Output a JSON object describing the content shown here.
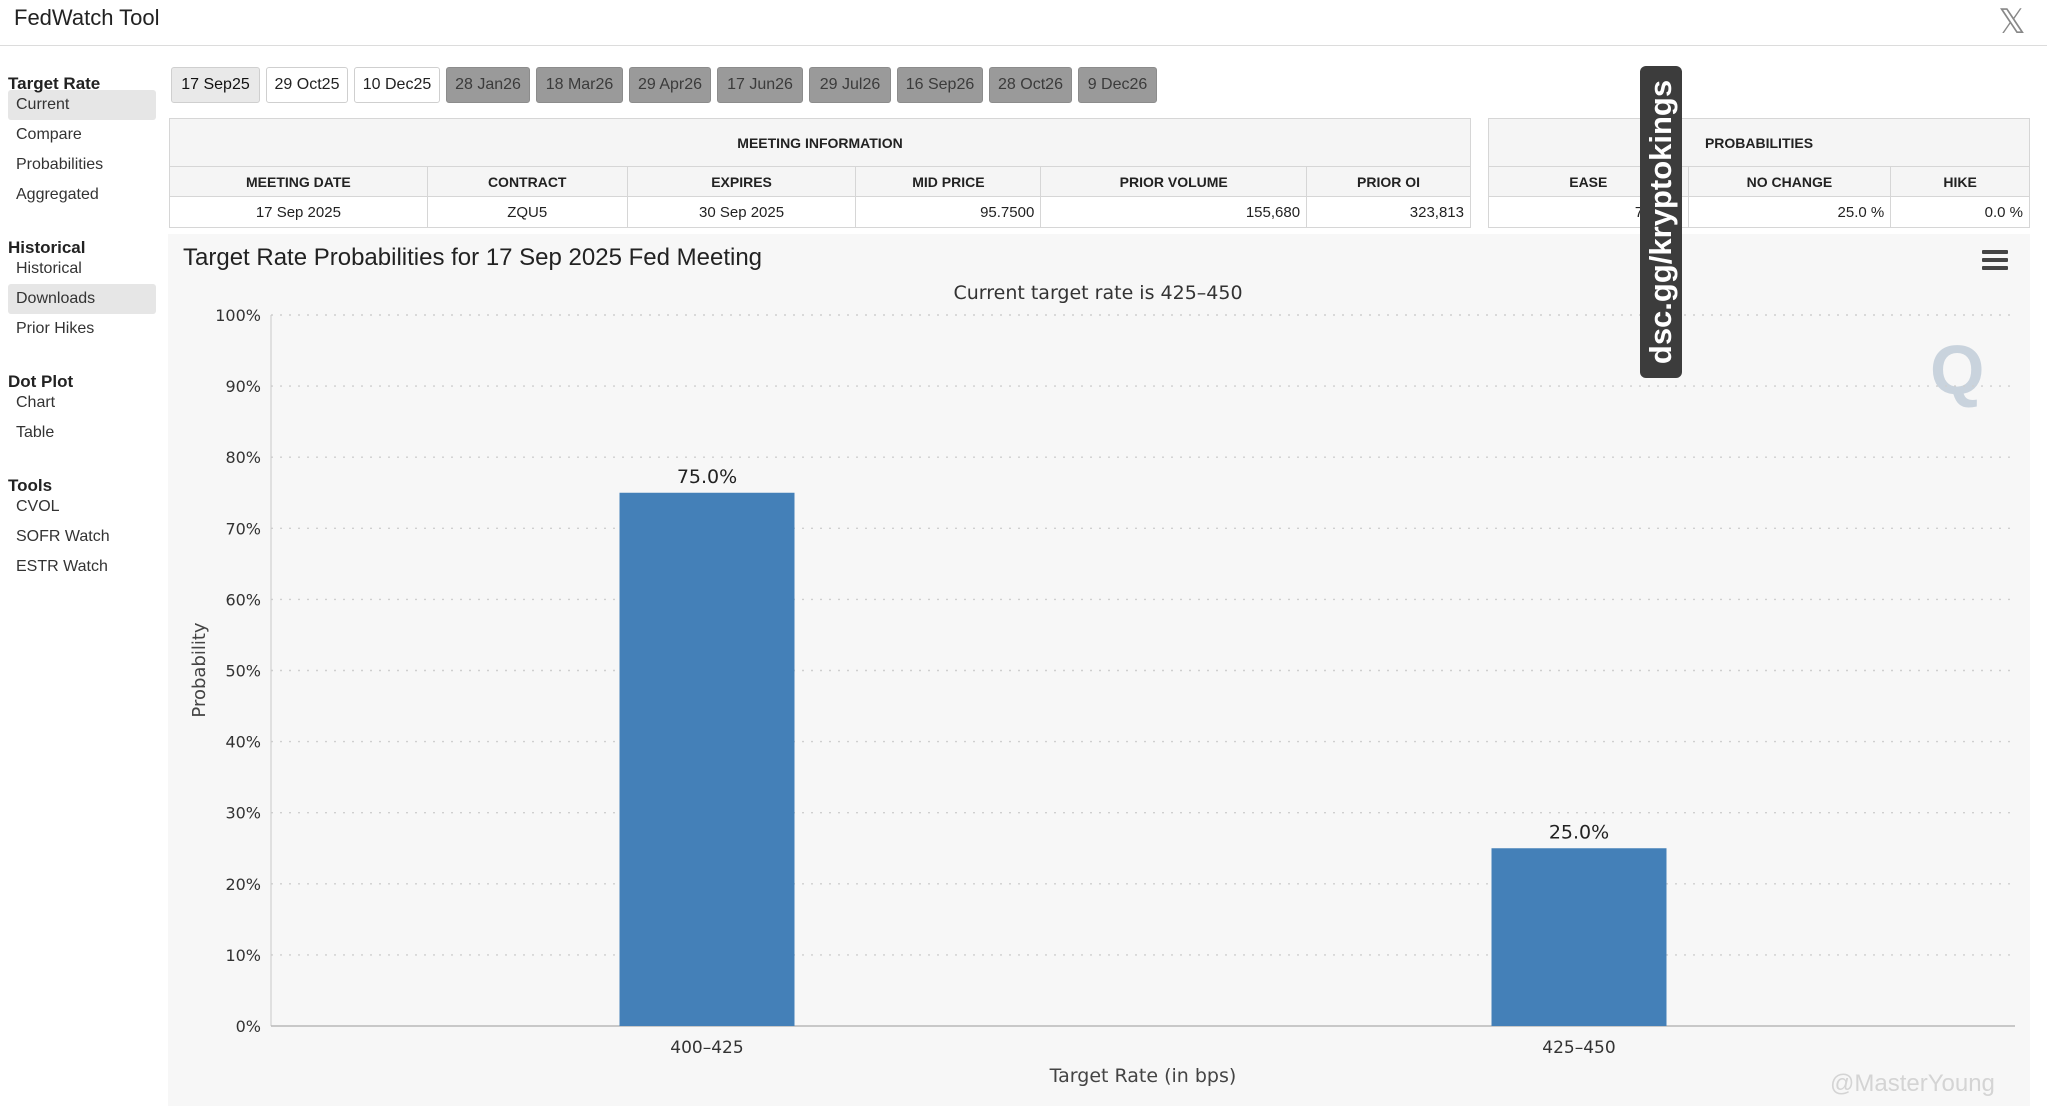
{
  "app": {
    "title": "FedWatch Tool"
  },
  "sidebar": {
    "sections": [
      {
        "heading": "Target Rate",
        "items": [
          "Current",
          "Compare",
          "Probabilities",
          "Aggregated"
        ]
      },
      {
        "heading": "Historical",
        "items": [
          "Historical",
          "Downloads",
          "Prior Hikes"
        ]
      },
      {
        "heading": "Dot Plot",
        "items": [
          "Chart",
          "Table"
        ]
      },
      {
        "heading": "Tools",
        "items": [
          "CVOL",
          "SOFR Watch",
          "ESTR Watch"
        ]
      }
    ]
  },
  "tabs": [
    "17 Sep25",
    "29 Oct25",
    "10 Dec25",
    "28 Jan26",
    "18 Mar26",
    "29 Apr26",
    "17 Jun26",
    "29 Jul26",
    "16 Sep26",
    "28 Oct26",
    "9 Dec26"
  ],
  "meeting_info": {
    "heading": "MEETING INFORMATION",
    "columns": [
      "MEETING DATE",
      "CONTRACT",
      "EXPIRES",
      "MID PRICE",
      "PRIOR VOLUME",
      "PRIOR OI"
    ],
    "row": [
      "17 Sep 2025",
      "ZQU5",
      "30 Sep 2025",
      "95.7500",
      "155,680",
      "323,813"
    ]
  },
  "probabilities": {
    "heading": "PROBABILITIES",
    "columns": [
      "EASE",
      "NO CHANGE",
      "HIKE"
    ],
    "row": [
      "75.0 %",
      "25.0 %",
      "0.0 %"
    ]
  },
  "overlay_text": "dsc.gg/kryptokings",
  "credit_text": "@MasterYoung",
  "logo_letter": "Q",
  "chart_data": {
    "type": "bar",
    "title": "Target Rate Probabilities for 17 Sep 2025 Fed Meeting",
    "subtitle": "Current target rate is 425–450",
    "xlabel": "Target Rate (in bps)",
    "ylabel": "Probability",
    "categories": [
      "400–425",
      "425–450"
    ],
    "values": [
      75.0,
      25.0
    ],
    "data_labels": [
      "75.0%",
      "25.0%"
    ],
    "ylim": [
      0,
      100
    ],
    "yticks": [
      "0%",
      "10%",
      "20%",
      "30%",
      "40%",
      "50%",
      "60%",
      "70%",
      "80%",
      "90%",
      "100%"
    ],
    "bar_color": "#4480b8",
    "grid": true
  }
}
